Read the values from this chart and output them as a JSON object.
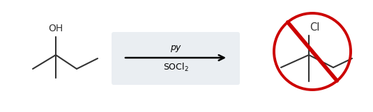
{
  "bg_color": "#ffffff",
  "arrow_box_color": "#eaeef2",
  "arrow_label_top": "SOCl$_2$",
  "arrow_label_bottom": "py",
  "mol_color": "#333333",
  "circle_color": "#cc0000",
  "slash_color": "#cc0000",
  "figsize": [
    5.35,
    1.61
  ],
  "dpi": 100,
  "lw": 1.5
}
